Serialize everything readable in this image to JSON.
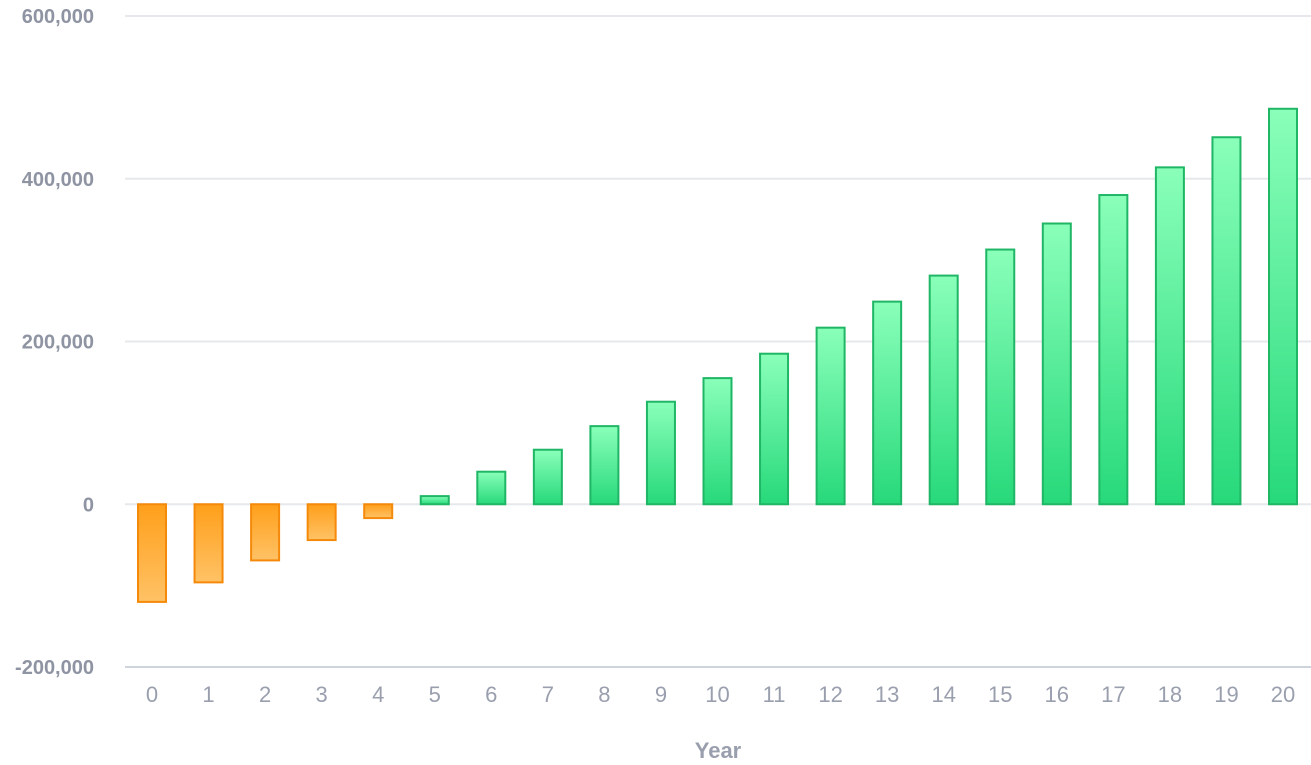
{
  "chart_data": {
    "type": "bar",
    "title": "",
    "xlabel": "Year",
    "ylabel": "",
    "ylim": [
      -200000,
      600000
    ],
    "yticks": [
      600000,
      400000,
      200000,
      0,
      -200000
    ],
    "ytick_labels": [
      "600,000",
      "400,000",
      "200,000",
      "0",
      "-200,000"
    ],
    "grid": true,
    "categories": [
      "0",
      "1",
      "2",
      "3",
      "4",
      "5",
      "6",
      "7",
      "8",
      "9",
      "10",
      "11",
      "12",
      "13",
      "14",
      "15",
      "16",
      "17",
      "18",
      "19",
      "20"
    ],
    "values": [
      -120000,
      -96000,
      -69000,
      -44000,
      -17000,
      10000,
      40000,
      67000,
      96000,
      126000,
      155000,
      185000,
      217000,
      249000,
      281000,
      313000,
      345000,
      380000,
      414000,
      451000,
      486000
    ],
    "colors": {
      "positive_top": "#8affba",
      "positive_bottom": "#27d97a",
      "positive_stroke": "#1fb665",
      "negative_top": "#ff9f1a",
      "negative_bottom": "#ffc266",
      "negative_stroke": "#f5890a",
      "grid": "#e6e8ec",
      "axis": "#cfd3dc"
    }
  }
}
